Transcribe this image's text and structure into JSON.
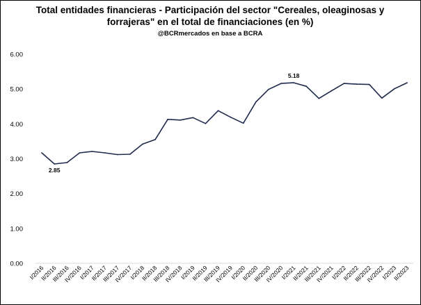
{
  "chart_data": {
    "type": "line",
    "title_line1": "Total entidades financieras - Participación del sector \"Cereales, oleaginosas y",
    "title_line2": "forrajeras\" en el total de financiaciones (en %)",
    "subtitle": "@BCRmercados en base a BCRA",
    "xlabel": "",
    "ylabel": "",
    "ylim": [
      0,
      6
    ],
    "yticks": [
      "0.00",
      "1.00",
      "2.00",
      "3.00",
      "4.00",
      "5.00",
      "6.00"
    ],
    "grid": false,
    "legend": "none",
    "line_color": "#1f2a4d",
    "categories": [
      "I/2016",
      "II/2016",
      "III/2016",
      "IV/2016",
      "I/2017",
      "II/2017",
      "III/2017",
      "IV/2017",
      "I/2018",
      "II/2018",
      "III/2018",
      "IV/2018",
      "I/2019",
      "II/2019",
      "III/2019",
      "IV/2019",
      "I/2020",
      "II/2020",
      "III/2020",
      "IV/2020",
      "I/2021",
      "II/2021",
      "III/2021",
      "IV/2021",
      "I/2022",
      "II/2022",
      "III/2022",
      "IV/2022",
      "I/2023",
      "II/2023"
    ],
    "values": [
      3.17,
      2.85,
      2.89,
      3.17,
      3.21,
      3.17,
      3.12,
      3.13,
      3.42,
      3.55,
      4.13,
      4.11,
      4.18,
      4.01,
      4.38,
      4.19,
      4.02,
      4.63,
      4.99,
      5.16,
      5.18,
      5.08,
      4.73,
      4.95,
      5.16,
      5.14,
      5.13,
      4.74,
      5.01,
      5.18
    ],
    "annotations": [
      {
        "index": 1,
        "text": "2.85",
        "placement": "below"
      },
      {
        "index": 20,
        "text": "5.18",
        "placement": "above"
      }
    ]
  }
}
